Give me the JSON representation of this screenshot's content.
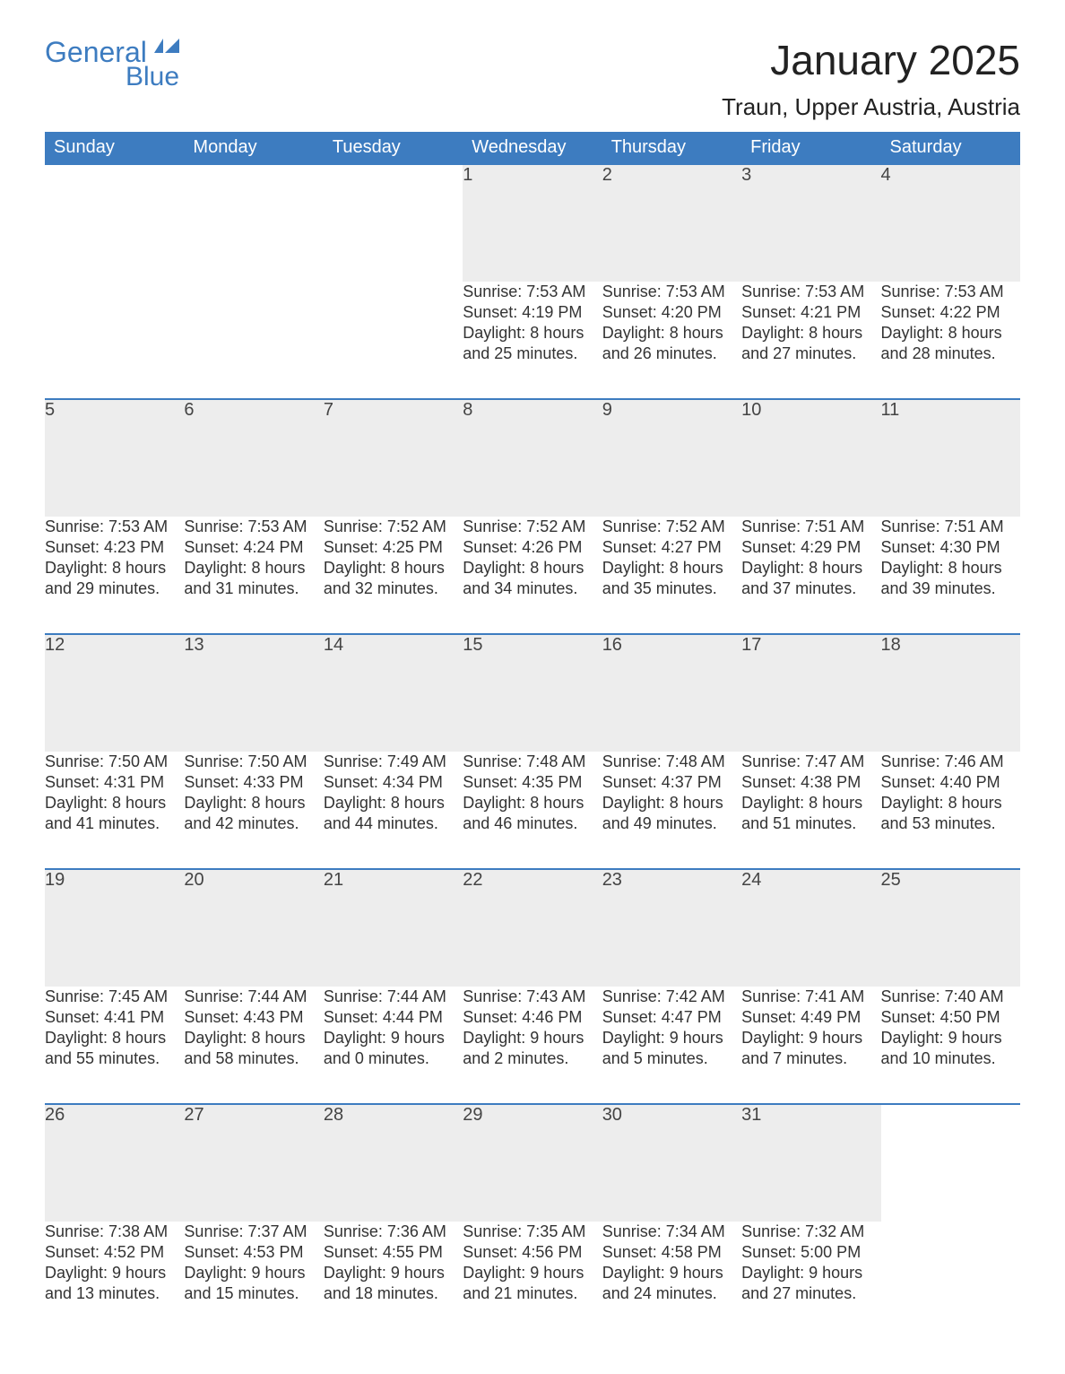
{
  "brand": {
    "line1": "General",
    "line2": "Blue"
  },
  "title": "January 2025",
  "location": "Traun, Upper Austria, Austria",
  "colors": {
    "header_bg": "#3d7cc0",
    "header_text": "#ffffff",
    "daynum_bg": "#ededed",
    "week_border": "#3d7cc0",
    "body_text": "#333333",
    "page_bg": "#ffffff"
  },
  "weekdays": [
    "Sunday",
    "Monday",
    "Tuesday",
    "Wednesday",
    "Thursday",
    "Friday",
    "Saturday"
  ],
  "weeks": [
    [
      null,
      null,
      null,
      {
        "d": "1",
        "sunrise": "7:53 AM",
        "sunset": "4:19 PM",
        "dl_h": "8",
        "dl_m": "25"
      },
      {
        "d": "2",
        "sunrise": "7:53 AM",
        "sunset": "4:20 PM",
        "dl_h": "8",
        "dl_m": "26"
      },
      {
        "d": "3",
        "sunrise": "7:53 AM",
        "sunset": "4:21 PM",
        "dl_h": "8",
        "dl_m": "27"
      },
      {
        "d": "4",
        "sunrise": "7:53 AM",
        "sunset": "4:22 PM",
        "dl_h": "8",
        "dl_m": "28"
      }
    ],
    [
      {
        "d": "5",
        "sunrise": "7:53 AM",
        "sunset": "4:23 PM",
        "dl_h": "8",
        "dl_m": "29"
      },
      {
        "d": "6",
        "sunrise": "7:53 AM",
        "sunset": "4:24 PM",
        "dl_h": "8",
        "dl_m": "31"
      },
      {
        "d": "7",
        "sunrise": "7:52 AM",
        "sunset": "4:25 PM",
        "dl_h": "8",
        "dl_m": "32"
      },
      {
        "d": "8",
        "sunrise": "7:52 AM",
        "sunset": "4:26 PM",
        "dl_h": "8",
        "dl_m": "34"
      },
      {
        "d": "9",
        "sunrise": "7:52 AM",
        "sunset": "4:27 PM",
        "dl_h": "8",
        "dl_m": "35"
      },
      {
        "d": "10",
        "sunrise": "7:51 AM",
        "sunset": "4:29 PM",
        "dl_h": "8",
        "dl_m": "37"
      },
      {
        "d": "11",
        "sunrise": "7:51 AM",
        "sunset": "4:30 PM",
        "dl_h": "8",
        "dl_m": "39"
      }
    ],
    [
      {
        "d": "12",
        "sunrise": "7:50 AM",
        "sunset": "4:31 PM",
        "dl_h": "8",
        "dl_m": "41"
      },
      {
        "d": "13",
        "sunrise": "7:50 AM",
        "sunset": "4:33 PM",
        "dl_h": "8",
        "dl_m": "42"
      },
      {
        "d": "14",
        "sunrise": "7:49 AM",
        "sunset": "4:34 PM",
        "dl_h": "8",
        "dl_m": "44"
      },
      {
        "d": "15",
        "sunrise": "7:48 AM",
        "sunset": "4:35 PM",
        "dl_h": "8",
        "dl_m": "46"
      },
      {
        "d": "16",
        "sunrise": "7:48 AM",
        "sunset": "4:37 PM",
        "dl_h": "8",
        "dl_m": "49"
      },
      {
        "d": "17",
        "sunrise": "7:47 AM",
        "sunset": "4:38 PM",
        "dl_h": "8",
        "dl_m": "51"
      },
      {
        "d": "18",
        "sunrise": "7:46 AM",
        "sunset": "4:40 PM",
        "dl_h": "8",
        "dl_m": "53"
      }
    ],
    [
      {
        "d": "19",
        "sunrise": "7:45 AM",
        "sunset": "4:41 PM",
        "dl_h": "8",
        "dl_m": "55"
      },
      {
        "d": "20",
        "sunrise": "7:44 AM",
        "sunset": "4:43 PM",
        "dl_h": "8",
        "dl_m": "58"
      },
      {
        "d": "21",
        "sunrise": "7:44 AM",
        "sunset": "4:44 PM",
        "dl_h": "9",
        "dl_m": "0"
      },
      {
        "d": "22",
        "sunrise": "7:43 AM",
        "sunset": "4:46 PM",
        "dl_h": "9",
        "dl_m": "2"
      },
      {
        "d": "23",
        "sunrise": "7:42 AM",
        "sunset": "4:47 PM",
        "dl_h": "9",
        "dl_m": "5"
      },
      {
        "d": "24",
        "sunrise": "7:41 AM",
        "sunset": "4:49 PM",
        "dl_h": "9",
        "dl_m": "7"
      },
      {
        "d": "25",
        "sunrise": "7:40 AM",
        "sunset": "4:50 PM",
        "dl_h": "9",
        "dl_m": "10"
      }
    ],
    [
      {
        "d": "26",
        "sunrise": "7:38 AM",
        "sunset": "4:52 PM",
        "dl_h": "9",
        "dl_m": "13"
      },
      {
        "d": "27",
        "sunrise": "7:37 AM",
        "sunset": "4:53 PM",
        "dl_h": "9",
        "dl_m": "15"
      },
      {
        "d": "28",
        "sunrise": "7:36 AM",
        "sunset": "4:55 PM",
        "dl_h": "9",
        "dl_m": "18"
      },
      {
        "d": "29",
        "sunrise": "7:35 AM",
        "sunset": "4:56 PM",
        "dl_h": "9",
        "dl_m": "21"
      },
      {
        "d": "30",
        "sunrise": "7:34 AM",
        "sunset": "4:58 PM",
        "dl_h": "9",
        "dl_m": "24"
      },
      {
        "d": "31",
        "sunrise": "7:32 AM",
        "sunset": "5:00 PM",
        "dl_h": "9",
        "dl_m": "27"
      },
      null
    ]
  ],
  "labels": {
    "sunrise": "Sunrise: ",
    "sunset": "Sunset: ",
    "daylight_pre": "Daylight: ",
    "hours": " hours",
    "and": "and ",
    "minutes": " minutes."
  }
}
